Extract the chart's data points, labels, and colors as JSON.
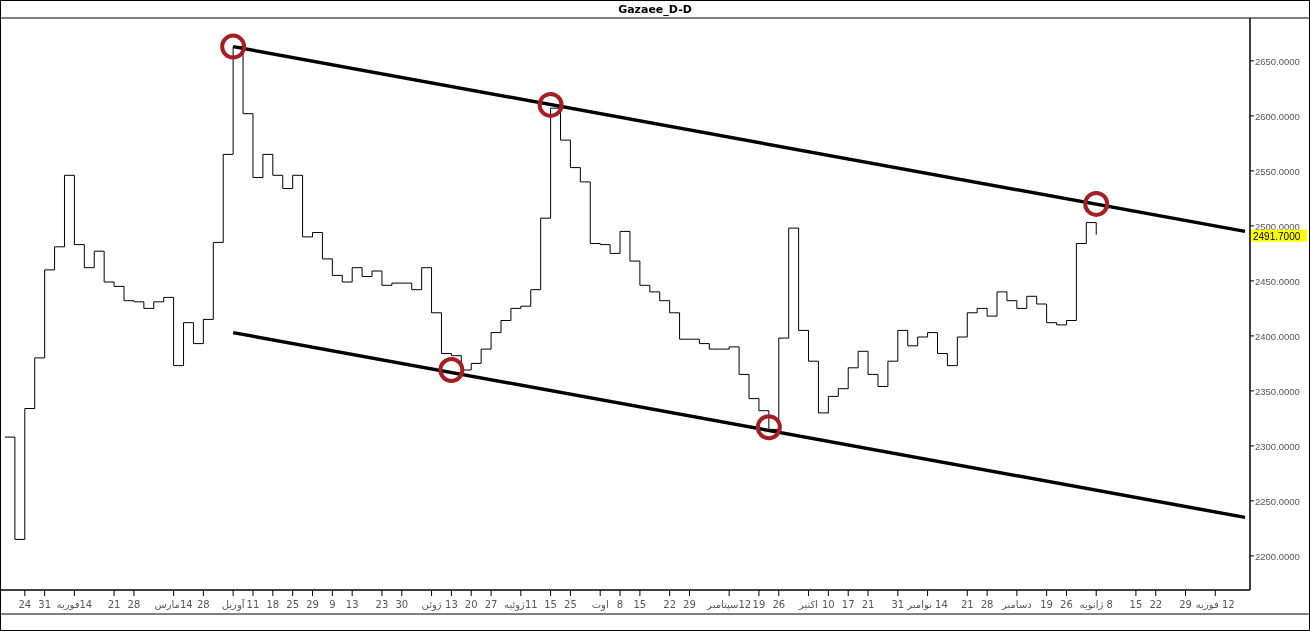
{
  "chart_data": {
    "type": "step",
    "title": "Gazaee_D-D",
    "ylim": [
      2169,
      2689
    ],
    "categories": [
      null,
      null,
      "24",
      null,
      "31",
      null,
      null,
      "14فوریه",
      null,
      null,
      null,
      "21",
      null,
      "28",
      null,
      null,
      null,
      "14مارس",
      null,
      null,
      "28",
      null,
      null,
      "آوریل",
      null,
      "11",
      null,
      "18",
      null,
      "25",
      null,
      "29",
      null,
      "9",
      null,
      "13",
      null,
      null,
      "23",
      null,
      "30",
      null,
      null,
      "ژوئن",
      null,
      "13",
      null,
      "20",
      null,
      "27",
      null,
      null,
      "11ژوئیه",
      null,
      null,
      "15",
      null,
      "25",
      null,
      null,
      "اوت",
      null,
      "8",
      null,
      "15",
      null,
      null,
      "22",
      null,
      "29",
      null,
      null,
      null,
      "12سپتامبر",
      null,
      null,
      "19",
      null,
      "26",
      null,
      null,
      "اکتبر",
      null,
      "10",
      null,
      "17",
      null,
      "21",
      null,
      null,
      "31",
      null,
      null,
      "14 نوامبر",
      null,
      null,
      null,
      "21",
      null,
      "28",
      null,
      null,
      "دسامبر",
      null,
      null,
      "19",
      null,
      "26",
      null,
      null,
      "8 ژانویه",
      null,
      null,
      null,
      "15",
      null,
      "22",
      null,
      null,
      "29",
      null,
      null,
      "12 فوریه",
      null,
      null,
      null
    ],
    "yticks": [
      {
        "value": 2200,
        "label": "2200.0000"
      },
      {
        "value": 2250,
        "label": "2250.0000"
      },
      {
        "value": 2300,
        "label": "2300.0000"
      },
      {
        "value": 2350,
        "label": "2350.0000"
      },
      {
        "value": 2400,
        "label": "2400.0000"
      },
      {
        "value": 2450,
        "label": "2450.0000"
      },
      {
        "value": 2500,
        "label": "2500.0000"
      },
      {
        "value": 2550,
        "label": "2550.0000"
      },
      {
        "value": 2600,
        "label": "2600.0000"
      },
      {
        "value": 2650,
        "label": "2650.0000"
      }
    ],
    "annotations": [
      "2491.7000"
    ],
    "series": [
      {
        "color": "#000000",
        "values": [
          2308,
          2215,
          2334,
          2380,
          2460,
          2481,
          2546,
          2483,
          2462,
          2477,
          2449,
          2445,
          2432,
          2431,
          2425,
          2431,
          2435,
          2373,
          2412,
          2393,
          2415,
          2485,
          2565,
          2663,
          2602,
          2544,
          2565,
          2546,
          2534,
          2546,
          2490,
          2494,
          2470,
          2455,
          2449,
          2462,
          2454,
          2459,
          2446,
          2448,
          2448,
          2442,
          2462,
          2421,
          2384,
          2382,
          2369,
          2375,
          2388,
          2403,
          2414,
          2425,
          2427,
          2442,
          2507,
          2607,
          2578,
          2553,
          2540,
          2484,
          2483,
          2475,
          2495,
          2468,
          2446,
          2440,
          2432,
          2421,
          2397,
          2397,
          2393,
          2388,
          2388,
          2390,
          2365,
          2343,
          2332,
          2315,
          2398,
          2498,
          2405,
          2377,
          2330,
          2345,
          2352,
          2371,
          2386,
          2365,
          2354,
          2377,
          2405,
          2391,
          2399,
          2403,
          2384,
          2373,
          2399,
          2421,
          2425,
          2418,
          2440,
          2432,
          2425,
          2436,
          2429,
          2412,
          2410,
          2414,
          2484,
          2503,
          2492,
          null,
          null,
          null,
          null,
          null,
          null,
          null,
          null,
          null,
          null,
          null,
          null,
          null,
          null,
          null
        ]
      },
      {
        "type": "line",
        "color": "#000000",
        "values": [
          null,
          null,
          null,
          null,
          null,
          null,
          null,
          null,
          null,
          null,
          null,
          null,
          null,
          null,
          null,
          null,
          null,
          null,
          null,
          null,
          null,
          null,
          null,
          2663,
          null,
          null,
          null,
          null,
          null,
          null,
          null,
          null,
          null,
          null,
          null,
          null,
          null,
          null,
          null,
          null,
          null,
          null,
          null,
          null,
          null,
          null,
          null,
          null,
          null,
          null,
          null,
          null,
          null,
          null,
          null,
          null,
          null,
          null,
          null,
          null,
          null,
          null,
          null,
          null,
          null,
          null,
          null,
          null,
          null,
          null,
          null,
          null,
          null,
          null,
          null,
          null,
          null,
          null,
          null,
          null,
          null,
          null,
          null,
          null,
          null,
          null,
          null,
          null,
          null,
          null,
          null,
          null,
          null,
          null,
          null,
          null,
          null,
          null,
          null,
          null,
          null,
          null,
          null,
          null,
          null,
          null,
          null,
          null,
          null,
          null,
          null,
          null,
          null,
          null,
          null,
          null,
          null,
          null,
          null,
          null,
          null,
          null,
          null,
          null,
          null,
          2495
        ]
      },
      {
        "type": "line",
        "color": "#000000",
        "values": [
          null,
          null,
          null,
          null,
          null,
          null,
          null,
          null,
          null,
          null,
          null,
          null,
          null,
          null,
          null,
          null,
          null,
          null,
          null,
          null,
          null,
          null,
          null,
          2403,
          null,
          null,
          null,
          null,
          null,
          null,
          null,
          null,
          null,
          null,
          null,
          null,
          null,
          null,
          null,
          null,
          null,
          null,
          null,
          null,
          null,
          null,
          null,
          null,
          null,
          null,
          null,
          null,
          null,
          null,
          null,
          null,
          null,
          null,
          null,
          null,
          null,
          null,
          null,
          null,
          null,
          null,
          null,
          null,
          null,
          null,
          null,
          null,
          null,
          null,
          null,
          null,
          null,
          null,
          null,
          null,
          null,
          null,
          null,
          null,
          null,
          null,
          null,
          null,
          null,
          null,
          null,
          null,
          null,
          null,
          null,
          null,
          null,
          null,
          null,
          null,
          null,
          null,
          null,
          null,
          null,
          null,
          null,
          null,
          null,
          null,
          null,
          null,
          null,
          null,
          null,
          null,
          null,
          null,
          null,
          null,
          null,
          null,
          null,
          null,
          null,
          2235
        ]
      },
      {
        "type": "scatter",
        "marker": "circle",
        "color": "#a31f24",
        "values": [
          null,
          null,
          null,
          null,
          null,
          null,
          null,
          null,
          null,
          null,
          null,
          null,
          null,
          null,
          null,
          null,
          null,
          null,
          null,
          null,
          null,
          null,
          null,
          2663,
          null,
          null,
          null,
          null,
          null,
          null,
          null,
          null,
          null,
          null,
          null,
          null,
          null,
          null,
          null,
          null,
          null,
          null,
          null,
          null,
          null,
          2369,
          null,
          null,
          null,
          null,
          null,
          null,
          null,
          null,
          null,
          2610,
          null,
          null,
          null,
          null,
          null,
          null,
          null,
          null,
          null,
          null,
          null,
          null,
          null,
          null,
          null,
          null,
          null,
          null,
          null,
          null,
          null,
          2317,
          null,
          null,
          null,
          null,
          null,
          null,
          null,
          null,
          null,
          null,
          null,
          null,
          null,
          null,
          null,
          null,
          null,
          null,
          null,
          null,
          null,
          null,
          null,
          null,
          null,
          null,
          null,
          null,
          null,
          null,
          null,
          null,
          2520,
          null,
          null,
          null,
          null,
          null,
          null,
          null,
          null,
          null,
          null,
          null,
          null,
          null,
          null,
          null
        ]
      }
    ]
  }
}
